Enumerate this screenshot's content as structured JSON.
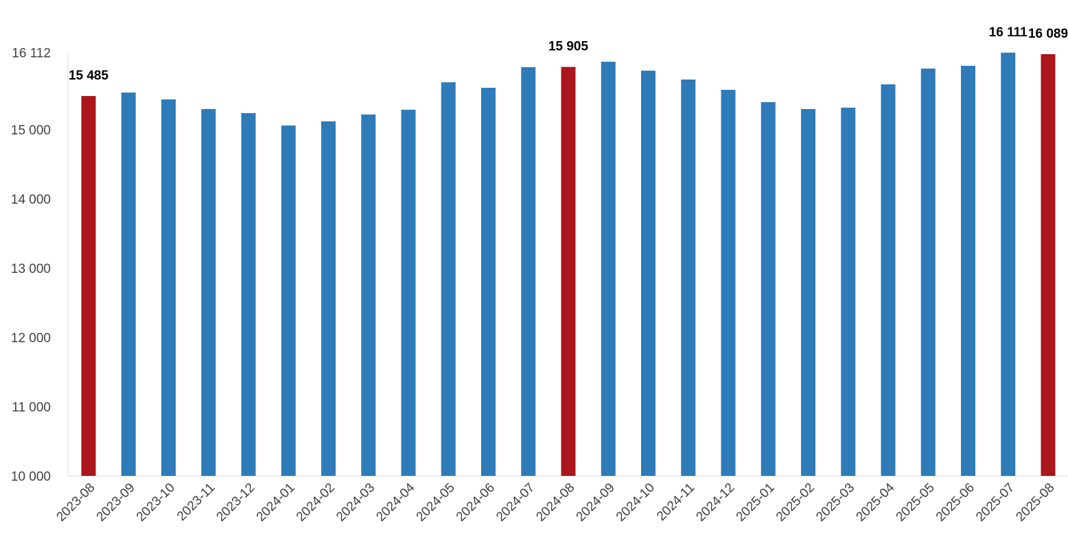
{
  "chart_data": {
    "type": "bar",
    "title": "",
    "xlabel": "",
    "ylabel": "",
    "ylim": [
      10000,
      16112
    ],
    "yticks": [
      10000,
      11000,
      12000,
      13000,
      14000,
      15000,
      16112
    ],
    "ytick_labels": [
      "10 000",
      "11 000",
      "12 000",
      "13 000",
      "14 000",
      "15 000",
      "16 112"
    ],
    "grid": false,
    "legend": "none",
    "colors": {
      "default": "#2e7bb8",
      "highlight": "#ab151c"
    },
    "categories": [
      "2023-08",
      "2023-09",
      "2023-10",
      "2023-11",
      "2023-12",
      "2024-01",
      "2024-02",
      "2024-03",
      "2024-04",
      "2024-05",
      "2024-06",
      "2024-07",
      "2024-08",
      "2024-09",
      "2024-10",
      "2024-11",
      "2024-12",
      "2025-01",
      "2025-02",
      "2025-03",
      "2025-04",
      "2025-05",
      "2025-06",
      "2025-07",
      "2025-08"
    ],
    "values": [
      15485,
      15535,
      15436,
      15297,
      15238,
      15059,
      15119,
      15218,
      15287,
      15683,
      15604,
      15901,
      15905,
      15980,
      15851,
      15723,
      15574,
      15396,
      15297,
      15317,
      15653,
      15881,
      15921,
      16111,
      16089
    ],
    "highlighted": [
      "2023-08",
      "2024-08",
      "2025-08"
    ],
    "data_labels": [
      {
        "category": "2023-08",
        "text": "15 485"
      },
      {
        "category": "2024-08",
        "text": "15 905"
      },
      {
        "category": "2025-07",
        "text": "16 111"
      },
      {
        "category": "2025-08",
        "text": "16 089"
      }
    ]
  }
}
